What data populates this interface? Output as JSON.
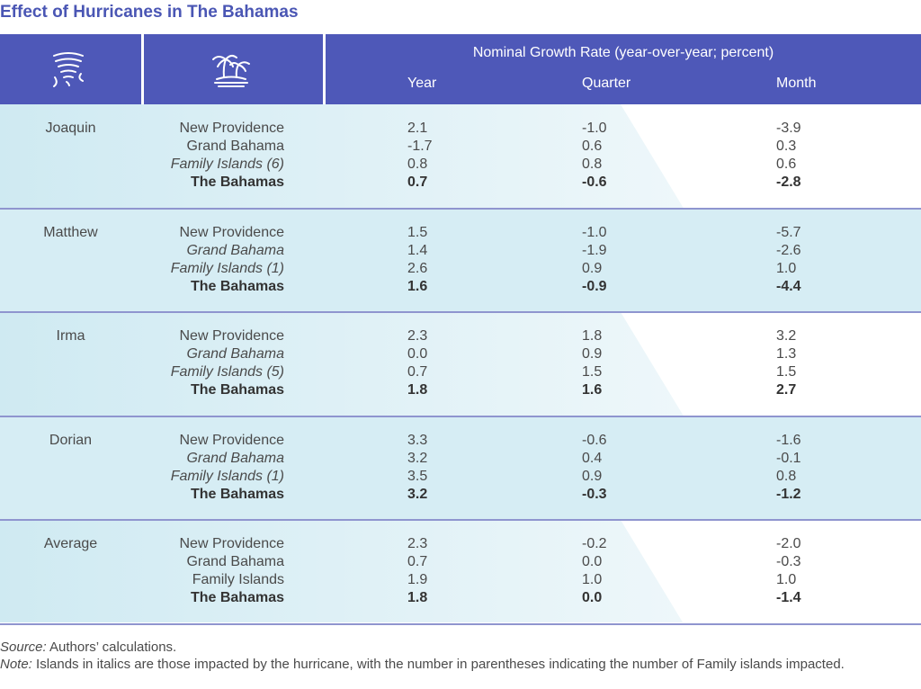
{
  "title": "Effect of Hurricanes in The Bahamas",
  "header": {
    "hurricane_icon": "hurricane-icon",
    "island_icon": "palm-island-icon",
    "group_label": "Nominal Growth Rate (year-over-year; percent)",
    "columns": [
      "Year",
      "Quarter",
      "Month"
    ]
  },
  "colors": {
    "header_bg": "#4e58b8",
    "band_light_blue": "#cfeaf2",
    "divider": "#8f95cf",
    "title": "#4a56b4"
  },
  "groups": [
    {
      "name": "Joaquin",
      "rows": [
        {
          "island": "New Providence",
          "italic": false,
          "bold": false,
          "year": "2.1",
          "quarter": "-1.0",
          "month": "-3.9"
        },
        {
          "island": "Grand Bahama",
          "italic": false,
          "bold": false,
          "year": "-1.7",
          "quarter": "0.6",
          "month": "0.3"
        },
        {
          "island": "Family Islands (6)",
          "italic": true,
          "bold": false,
          "year": "0.8",
          "quarter": "0.8",
          "month": "0.6"
        },
        {
          "island": "The Bahamas",
          "italic": false,
          "bold": true,
          "year": "0.7",
          "quarter": "-0.6",
          "month": "-2.8"
        }
      ]
    },
    {
      "name": "Matthew",
      "rows": [
        {
          "island": "New Providence",
          "italic": false,
          "bold": false,
          "year": "1.5",
          "quarter": "-1.0",
          "month": "-5.7"
        },
        {
          "island": "Grand Bahama",
          "italic": true,
          "bold": false,
          "year": "1.4",
          "quarter": "-1.9",
          "month": "-2.6"
        },
        {
          "island": "Family Islands (1)",
          "italic": true,
          "bold": false,
          "year": "2.6",
          "quarter": "0.9",
          "month": "1.0"
        },
        {
          "island": "The Bahamas",
          "italic": false,
          "bold": true,
          "year": "1.6",
          "quarter": "-0.9",
          "month": "-4.4"
        }
      ]
    },
    {
      "name": "Irma",
      "rows": [
        {
          "island": "New Providence",
          "italic": false,
          "bold": false,
          "year": "2.3",
          "quarter": "1.8",
          "month": "3.2"
        },
        {
          "island": "Grand Bahama",
          "italic": true,
          "bold": false,
          "year": "0.0",
          "quarter": "0.9",
          "month": "1.3"
        },
        {
          "island": "Family Islands (5)",
          "italic": true,
          "bold": false,
          "year": "0.7",
          "quarter": "1.5",
          "month": "1.5"
        },
        {
          "island": "The Bahamas",
          "italic": false,
          "bold": true,
          "year": "1.8",
          "quarter": "1.6",
          "month": "2.7"
        }
      ]
    },
    {
      "name": "Dorian",
      "rows": [
        {
          "island": "New Providence",
          "italic": false,
          "bold": false,
          "year": "3.3",
          "quarter": "-0.6",
          "month": "-1.6"
        },
        {
          "island": "Grand Bahama",
          "italic": true,
          "bold": false,
          "year": "3.2",
          "quarter": "0.4",
          "month": "-0.1"
        },
        {
          "island": "Family Islands (1)",
          "italic": true,
          "bold": false,
          "year": "3.5",
          "quarter": "0.9",
          "month": "0.8"
        },
        {
          "island": "The Bahamas",
          "italic": false,
          "bold": true,
          "year": "3.2",
          "quarter": "-0.3",
          "month": "-1.2"
        }
      ]
    },
    {
      "name": "Average",
      "rows": [
        {
          "island": "New Providence",
          "italic": false,
          "bold": false,
          "year": "2.3",
          "quarter": "-0.2",
          "month": "-2.0"
        },
        {
          "island": "Grand Bahama",
          "italic": false,
          "bold": false,
          "year": "0.7",
          "quarter": "0.0",
          "month": "-0.3"
        },
        {
          "island": "Family Islands",
          "italic": false,
          "bold": false,
          "year": "1.9",
          "quarter": "1.0",
          "month": "1.0"
        },
        {
          "island": "The Bahamas",
          "italic": false,
          "bold": true,
          "year": "1.8",
          "quarter": "0.0",
          "month": "-1.4"
        }
      ]
    }
  ],
  "footer": {
    "source_label": "Source:",
    "source_text": " Authors’ calculations.",
    "note_label": "Note:",
    "note_text": " Islands in italics are those impacted by the hurricane, with the number in parentheses indicating the number of Family islands impacted."
  }
}
